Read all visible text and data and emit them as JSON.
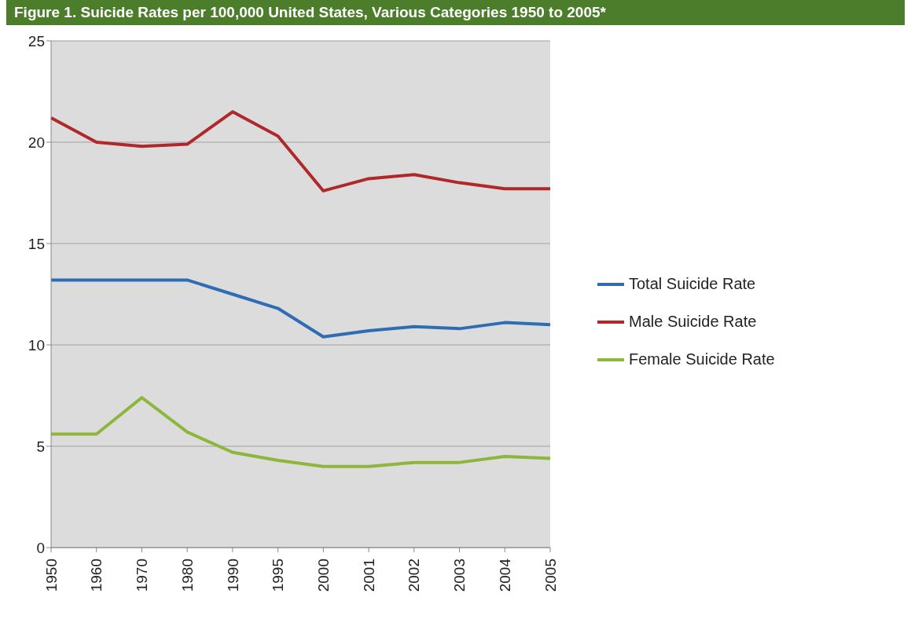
{
  "chart_data": {
    "type": "line",
    "title": "Figure 1. Suicide Rates per 100,000 United States, Various Categories 1950 to 2005*",
    "categories": [
      "1950",
      "1960",
      "1970",
      "1980",
      "1990",
      "1995",
      "2000",
      "2001",
      "2002",
      "2003",
      "2004",
      "2005"
    ],
    "series": [
      {
        "name": "Total Suicide Rate",
        "color": "#2e6db4",
        "values": [
          13.2,
          13.2,
          13.2,
          13.2,
          12.5,
          11.8,
          10.4,
          10.7,
          10.9,
          10.8,
          11.1,
          11.0
        ]
      },
      {
        "name": "Male Suicide Rate",
        "color": "#b0282a",
        "values": [
          21.2,
          20.0,
          19.8,
          19.9,
          21.5,
          20.3,
          17.6,
          18.2,
          18.4,
          18.0,
          17.7,
          17.7
        ]
      },
      {
        "name": "Female Suicide Rate",
        "color": "#8cb63c",
        "values": [
          5.6,
          5.6,
          7.4,
          5.7,
          4.7,
          4.3,
          4.0,
          4.0,
          4.2,
          4.2,
          4.5,
          4.4
        ]
      }
    ],
    "ylim": [
      0,
      25
    ],
    "yticks": [
      0,
      5,
      10,
      15,
      20,
      25
    ],
    "grid": "y",
    "legend": "right",
    "marker": "none"
  }
}
